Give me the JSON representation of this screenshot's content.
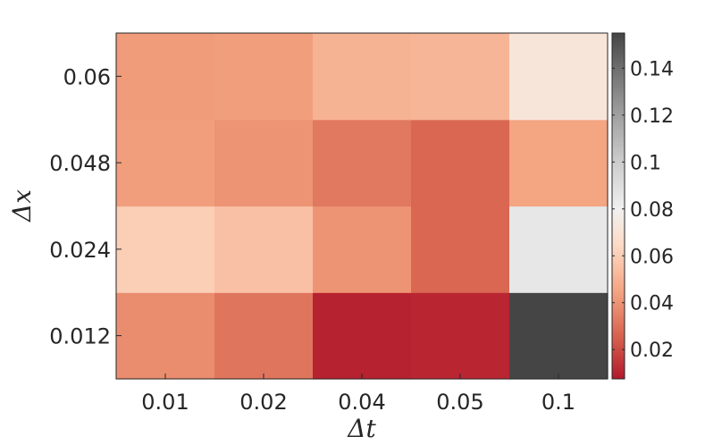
{
  "chart_data": {
    "type": "heatmap",
    "title": "",
    "xlabel": "Δt",
    "ylabel": "Δx",
    "x_categories": [
      "0.01",
      "0.02",
      "0.04",
      "0.05",
      "0.1"
    ],
    "y_categories": [
      "0.012",
      "0.024",
      "0.048",
      "0.06"
    ],
    "values": [
      [
        0.038,
        0.031,
        0.01,
        0.011,
        0.155
      ],
      [
        0.06,
        0.055,
        0.04,
        0.027,
        0.085
      ],
      [
        0.043,
        0.04,
        0.032,
        0.027,
        0.045
      ],
      [
        0.042,
        0.043,
        0.05,
        0.051,
        0.072
      ]
    ],
    "colorbar": {
      "range": [
        0.0075,
        0.155
      ],
      "ticks": [
        0.02,
        0.04,
        0.06,
        0.08,
        0.1,
        0.12,
        0.14
      ],
      "tick_labels": [
        "0.02",
        "0.04",
        "0.06",
        "0.08",
        "0.1",
        "0.12",
        "0.14"
      ],
      "colormap": [
        {
          "v": 0.0075,
          "color": "#b2182b"
        },
        {
          "v": 0.025,
          "color": "#d6604d"
        },
        {
          "v": 0.045,
          "color": "#f4a582"
        },
        {
          "v": 0.065,
          "color": "#fddbc7"
        },
        {
          "v": 0.08,
          "color": "#f0f0f0"
        },
        {
          "v": 0.1,
          "color": "#cccccc"
        },
        {
          "v": 0.12,
          "color": "#a0a0a0"
        },
        {
          "v": 0.14,
          "color": "#6e6e6e"
        },
        {
          "v": 0.155,
          "color": "#454545"
        }
      ]
    }
  }
}
